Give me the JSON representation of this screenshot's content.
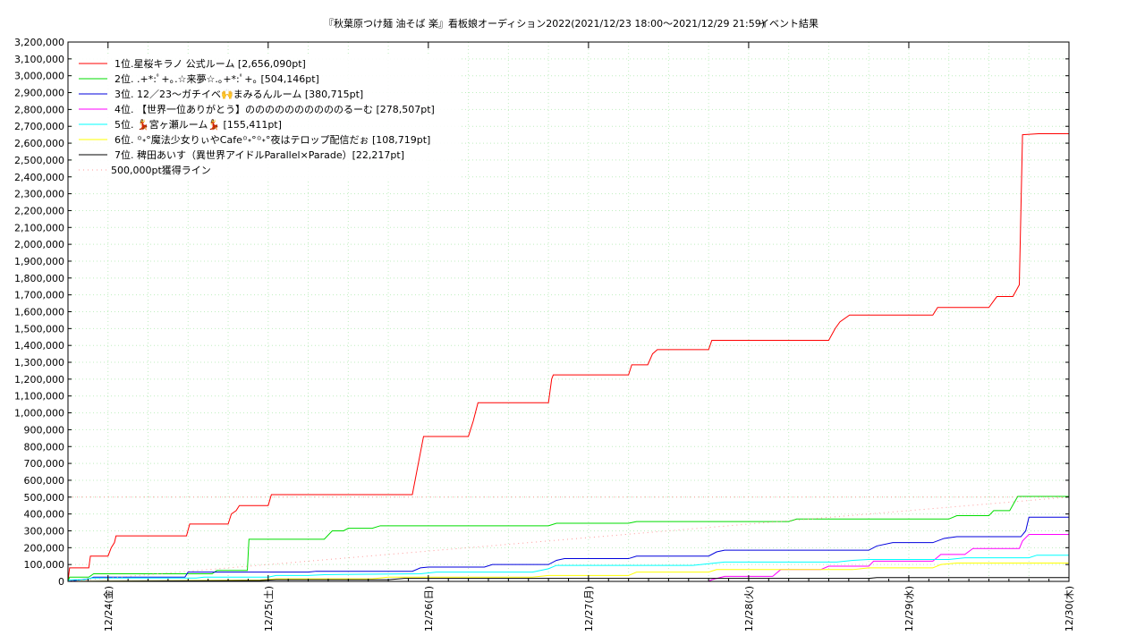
{
  "chart_data": {
    "type": "line",
    "title": "『秋葉原つけ麺 油そば 楽』看板娘オーディション2022(2021/12/23 18:00〜2021/12/29 21:59)",
    "title_right": "イベント結果",
    "ylim": [
      0,
      3200000
    ],
    "xlim": [
      0,
      6.25
    ],
    "grid": true,
    "legend_position": "top-left",
    "yticks": [
      {
        "v": 0,
        "label": "0"
      },
      {
        "v": 100000,
        "label": "100,000"
      },
      {
        "v": 200000,
        "label": "200,000"
      },
      {
        "v": 300000,
        "label": "300,000"
      },
      {
        "v": 400000,
        "label": "400,000"
      },
      {
        "v": 500000,
        "label": "500,000"
      },
      {
        "v": 600000,
        "label": "600,000"
      },
      {
        "v": 700000,
        "label": "700,000"
      },
      {
        "v": 800000,
        "label": "800,000"
      },
      {
        "v": 900000,
        "label": "900,000"
      },
      {
        "v": 1000000,
        "label": "1,000,000"
      },
      {
        "v": 1100000,
        "label": "1,100,000"
      },
      {
        "v": 1200000,
        "label": "1,200,000"
      },
      {
        "v": 1300000,
        "label": "1,300,000"
      },
      {
        "v": 1400000,
        "label": "1,400,000"
      },
      {
        "v": 1500000,
        "label": "1,500,000"
      },
      {
        "v": 1600000,
        "label": "1,600,000"
      },
      {
        "v": 1700000,
        "label": "1,700,000"
      },
      {
        "v": 1800000,
        "label": "1,800,000"
      },
      {
        "v": 1900000,
        "label": "1,900,000"
      },
      {
        "v": 2000000,
        "label": "2,000,000"
      },
      {
        "v": 2100000,
        "label": "2,100,000"
      },
      {
        "v": 2200000,
        "label": "2,200,000"
      },
      {
        "v": 2300000,
        "label": "2,300,000"
      },
      {
        "v": 2400000,
        "label": "2,400,000"
      },
      {
        "v": 2500000,
        "label": "2,500,000"
      },
      {
        "v": 2600000,
        "label": "2,600,000"
      },
      {
        "v": 2700000,
        "label": "2,700,000"
      },
      {
        "v": 2800000,
        "label": "2,800,000"
      },
      {
        "v": 2900000,
        "label": "2,900,000"
      },
      {
        "v": 3000000,
        "label": "3,000,000"
      },
      {
        "v": 3100000,
        "label": "3,100,000"
      },
      {
        "v": 3200000,
        "label": "3,200,000"
      }
    ],
    "xticks": [
      {
        "v": 0.25,
        "label": "12/24(金)"
      },
      {
        "v": 1.25,
        "label": "12/25(土)"
      },
      {
        "v": 2.25,
        "label": "12/26(日)"
      },
      {
        "v": 3.25,
        "label": "12/27(月)"
      },
      {
        "v": 4.25,
        "label": "12/28(火)"
      },
      {
        "v": 5.25,
        "label": "12/29(水)"
      },
      {
        "v": 6.25,
        "label": "12/30(木)"
      }
    ],
    "series": [
      {
        "name": "1位.星桜キラノ 公式ルーム [2,656,090pt]",
        "color": "#ff0000",
        "step": true,
        "points": [
          [
            0,
            0
          ],
          [
            0.01,
            80000
          ],
          [
            0.13,
            80000
          ],
          [
            0.14,
            150000
          ],
          [
            0.25,
            150000
          ],
          [
            0.27,
            200000
          ],
          [
            0.29,
            230000
          ],
          [
            0.3,
            270000
          ],
          [
            0.74,
            270000
          ],
          [
            0.76,
            340000
          ],
          [
            1.0,
            340000
          ],
          [
            1.02,
            400000
          ],
          [
            1.05,
            420000
          ],
          [
            1.07,
            450000
          ],
          [
            1.25,
            450000
          ],
          [
            1.27,
            515000
          ],
          [
            2.15,
            515000
          ],
          [
            2.22,
            860000
          ],
          [
            2.5,
            860000
          ],
          [
            2.53,
            950000
          ],
          [
            2.56,
            1060000
          ],
          [
            3.0,
            1060000
          ],
          [
            3.02,
            1200000
          ],
          [
            3.03,
            1225000
          ],
          [
            3.5,
            1225000
          ],
          [
            3.52,
            1285000
          ],
          [
            3.62,
            1285000
          ],
          [
            3.65,
            1350000
          ],
          [
            3.68,
            1375000
          ],
          [
            4.0,
            1375000
          ],
          [
            4.02,
            1430000
          ],
          [
            4.75,
            1430000
          ],
          [
            4.79,
            1500000
          ],
          [
            4.82,
            1540000
          ],
          [
            4.88,
            1580000
          ],
          [
            5.4,
            1580000
          ],
          [
            5.43,
            1625000
          ],
          [
            5.75,
            1625000
          ],
          [
            5.8,
            1690000
          ],
          [
            5.9,
            1690000
          ],
          [
            5.94,
            1760000
          ],
          [
            5.96,
            2650000
          ],
          [
            6.06,
            2656090
          ],
          [
            6.25,
            2656090
          ]
        ]
      },
      {
        "name": "2位. .+*:ﾟ+｡.☆来夢☆.｡+*:ﾟ+｡ [504,146pt]",
        "color": "#00dd00",
        "step": true,
        "points": [
          [
            0,
            0
          ],
          [
            0.01,
            25000
          ],
          [
            0.13,
            25000
          ],
          [
            0.16,
            45000
          ],
          [
            0.9,
            45000
          ],
          [
            0.93,
            65000
          ],
          [
            1.0,
            65000
          ],
          [
            1.12,
            65000
          ],
          [
            1.13,
            250000
          ],
          [
            1.6,
            250000
          ],
          [
            1.65,
            300000
          ],
          [
            1.72,
            300000
          ],
          [
            1.75,
            315000
          ],
          [
            1.9,
            315000
          ],
          [
            1.95,
            330000
          ],
          [
            3.0,
            330000
          ],
          [
            3.05,
            345000
          ],
          [
            3.5,
            345000
          ],
          [
            3.55,
            355000
          ],
          [
            4.5,
            355000
          ],
          [
            4.55,
            370000
          ],
          [
            5.5,
            370000
          ],
          [
            5.55,
            390000
          ],
          [
            5.75,
            390000
          ],
          [
            5.78,
            420000
          ],
          [
            5.88,
            420000
          ],
          [
            5.93,
            504146
          ],
          [
            6.25,
            504146
          ]
        ]
      },
      {
        "name": "3位. 12／23〜ガチイベ🙌まみるんルーム [380,715pt]",
        "color": "#0000dd",
        "step": true,
        "points": [
          [
            0,
            0
          ],
          [
            0.08,
            10000
          ],
          [
            0.13,
            15000
          ],
          [
            0.16,
            25000
          ],
          [
            0.73,
            25000
          ],
          [
            0.75,
            55000
          ],
          [
            1.5,
            55000
          ],
          [
            1.55,
            60000
          ],
          [
            2.15,
            60000
          ],
          [
            2.2,
            80000
          ],
          [
            2.25,
            85000
          ],
          [
            2.6,
            85000
          ],
          [
            2.65,
            100000
          ],
          [
            3.0,
            100000
          ],
          [
            3.05,
            125000
          ],
          [
            3.1,
            135000
          ],
          [
            3.5,
            135000
          ],
          [
            3.55,
            150000
          ],
          [
            4.0,
            150000
          ],
          [
            4.05,
            175000
          ],
          [
            4.1,
            185000
          ],
          [
            5.0,
            185000
          ],
          [
            5.05,
            210000
          ],
          [
            5.15,
            230000
          ],
          [
            5.4,
            230000
          ],
          [
            5.47,
            255000
          ],
          [
            5.55,
            265000
          ],
          [
            5.95,
            265000
          ],
          [
            5.98,
            300000
          ],
          [
            6.0,
            380715
          ],
          [
            6.25,
            380715
          ]
        ]
      },
      {
        "name": "4位. 【世界一位ありがとう】ののののののののののるーむ [278,507pt]",
        "color": "#ff00ff",
        "step": true,
        "points": [
          [
            0,
            0
          ],
          [
            4.0,
            0
          ],
          [
            4.02,
            10000
          ],
          [
            4.1,
            30000
          ],
          [
            4.4,
            30000
          ],
          [
            4.45,
            70000
          ],
          [
            4.7,
            70000
          ],
          [
            4.75,
            90000
          ],
          [
            5.0,
            90000
          ],
          [
            5.03,
            120000
          ],
          [
            5.4,
            120000
          ],
          [
            5.45,
            160000
          ],
          [
            5.6,
            160000
          ],
          [
            5.65,
            195000
          ],
          [
            5.94,
            195000
          ],
          [
            5.96,
            240000
          ],
          [
            6.0,
            278507
          ],
          [
            6.25,
            278507
          ]
        ]
      },
      {
        "name": "5位. 💃宮ヶ瀬ルーム💃 [155,411pt]",
        "color": "#00ffff",
        "step": true,
        "points": [
          [
            0,
            0
          ],
          [
            0.01,
            10000
          ],
          [
            0.1,
            10000
          ],
          [
            0.15,
            20000
          ],
          [
            0.8,
            20000
          ],
          [
            0.85,
            25000
          ],
          [
            1.25,
            25000
          ],
          [
            1.3,
            35000
          ],
          [
            1.5,
            35000
          ],
          [
            1.6,
            40000
          ],
          [
            2.2,
            45000
          ],
          [
            2.3,
            55000
          ],
          [
            2.9,
            55000
          ],
          [
            3.0,
            75000
          ],
          [
            3.05,
            95000
          ],
          [
            3.9,
            95000
          ],
          [
            4.0,
            105000
          ],
          [
            4.1,
            115000
          ],
          [
            4.8,
            115000
          ],
          [
            4.9,
            125000
          ],
          [
            5.0,
            130000
          ],
          [
            5.5,
            130000
          ],
          [
            5.6,
            140000
          ],
          [
            6.0,
            140000
          ],
          [
            6.05,
            155411
          ],
          [
            6.25,
            155411
          ]
        ]
      },
      {
        "name": "6位. ꙳˖°魔法少女りぃやCafe꙳˖°꙳˖°夜はテロップ配信だぉ [108,719pt]",
        "color": "#ffff00",
        "step": true,
        "points": [
          [
            0,
            0
          ],
          [
            0.8,
            5000
          ],
          [
            1.2,
            8000
          ],
          [
            1.3,
            15000
          ],
          [
            1.9,
            15000
          ],
          [
            2.0,
            25000
          ],
          [
            2.9,
            25000
          ],
          [
            3.0,
            35000
          ],
          [
            3.5,
            35000
          ],
          [
            3.55,
            55000
          ],
          [
            4.0,
            55000
          ],
          [
            4.05,
            70000
          ],
          [
            4.9,
            70000
          ],
          [
            5.0,
            80000
          ],
          [
            5.4,
            80000
          ],
          [
            5.45,
            100000
          ],
          [
            5.55,
            108719
          ],
          [
            6.25,
            108719
          ]
        ]
      },
      {
        "name": "7位. 稗田あいす（異世界アイドルParallel×Parade）[22,217pt]",
        "color": "#000000",
        "step": true,
        "points": [
          [
            0,
            0
          ],
          [
            1.2,
            5000
          ],
          [
            1.3,
            10000
          ],
          [
            2.0,
            10000
          ],
          [
            2.1,
            18000
          ],
          [
            5.0,
            18000
          ],
          [
            5.05,
            22217
          ],
          [
            6.25,
            22217
          ]
        ]
      },
      {
        "name": "500,000pt獲得ライン",
        "color": "#ff9999",
        "dotted": true,
        "step": false,
        "points": [
          [
            0,
            0
          ],
          [
            6.25,
            500000
          ]
        ]
      }
    ],
    "hline": {
      "value": 500000,
      "color": "#ff9999"
    }
  }
}
